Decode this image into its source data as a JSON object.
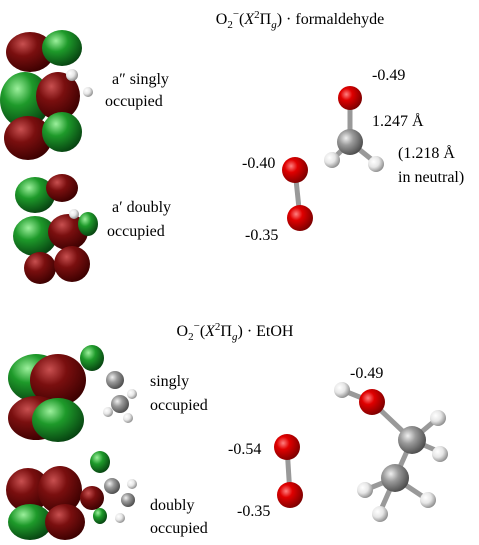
{
  "top_panel": {
    "title": [
      "O",
      "2",
      "−",
      "(",
      "X",
      "2",
      "Π",
      "g",
      ") · formaldehyde"
    ],
    "orbital_1_label": [
      "a″ singly",
      "occupied"
    ],
    "orbital_2_label": [
      "a′ doubly",
      "occupied"
    ],
    "charge_o_carbonyl": "-0.49",
    "bond_length": "1.247 Å",
    "bond_length_neutral": [
      "(1.218 Å",
      "in neutral)"
    ],
    "charge_o2_upper": "-0.40",
    "charge_o2_lower": "-0.35"
  },
  "bottom_panel": {
    "title": [
      "O",
      "2",
      "−",
      "(",
      "X",
      "2",
      "Π",
      "g",
      ") · EtOH"
    ],
    "orbital_1_label": [
      "singly",
      "occupied"
    ],
    "orbital_2_label": [
      "doubly",
      "occupied"
    ],
    "charge_o_hydroxyl": "-0.49",
    "charge_o2_upper": "-0.54",
    "charge_o2_lower": "-0.35"
  }
}
